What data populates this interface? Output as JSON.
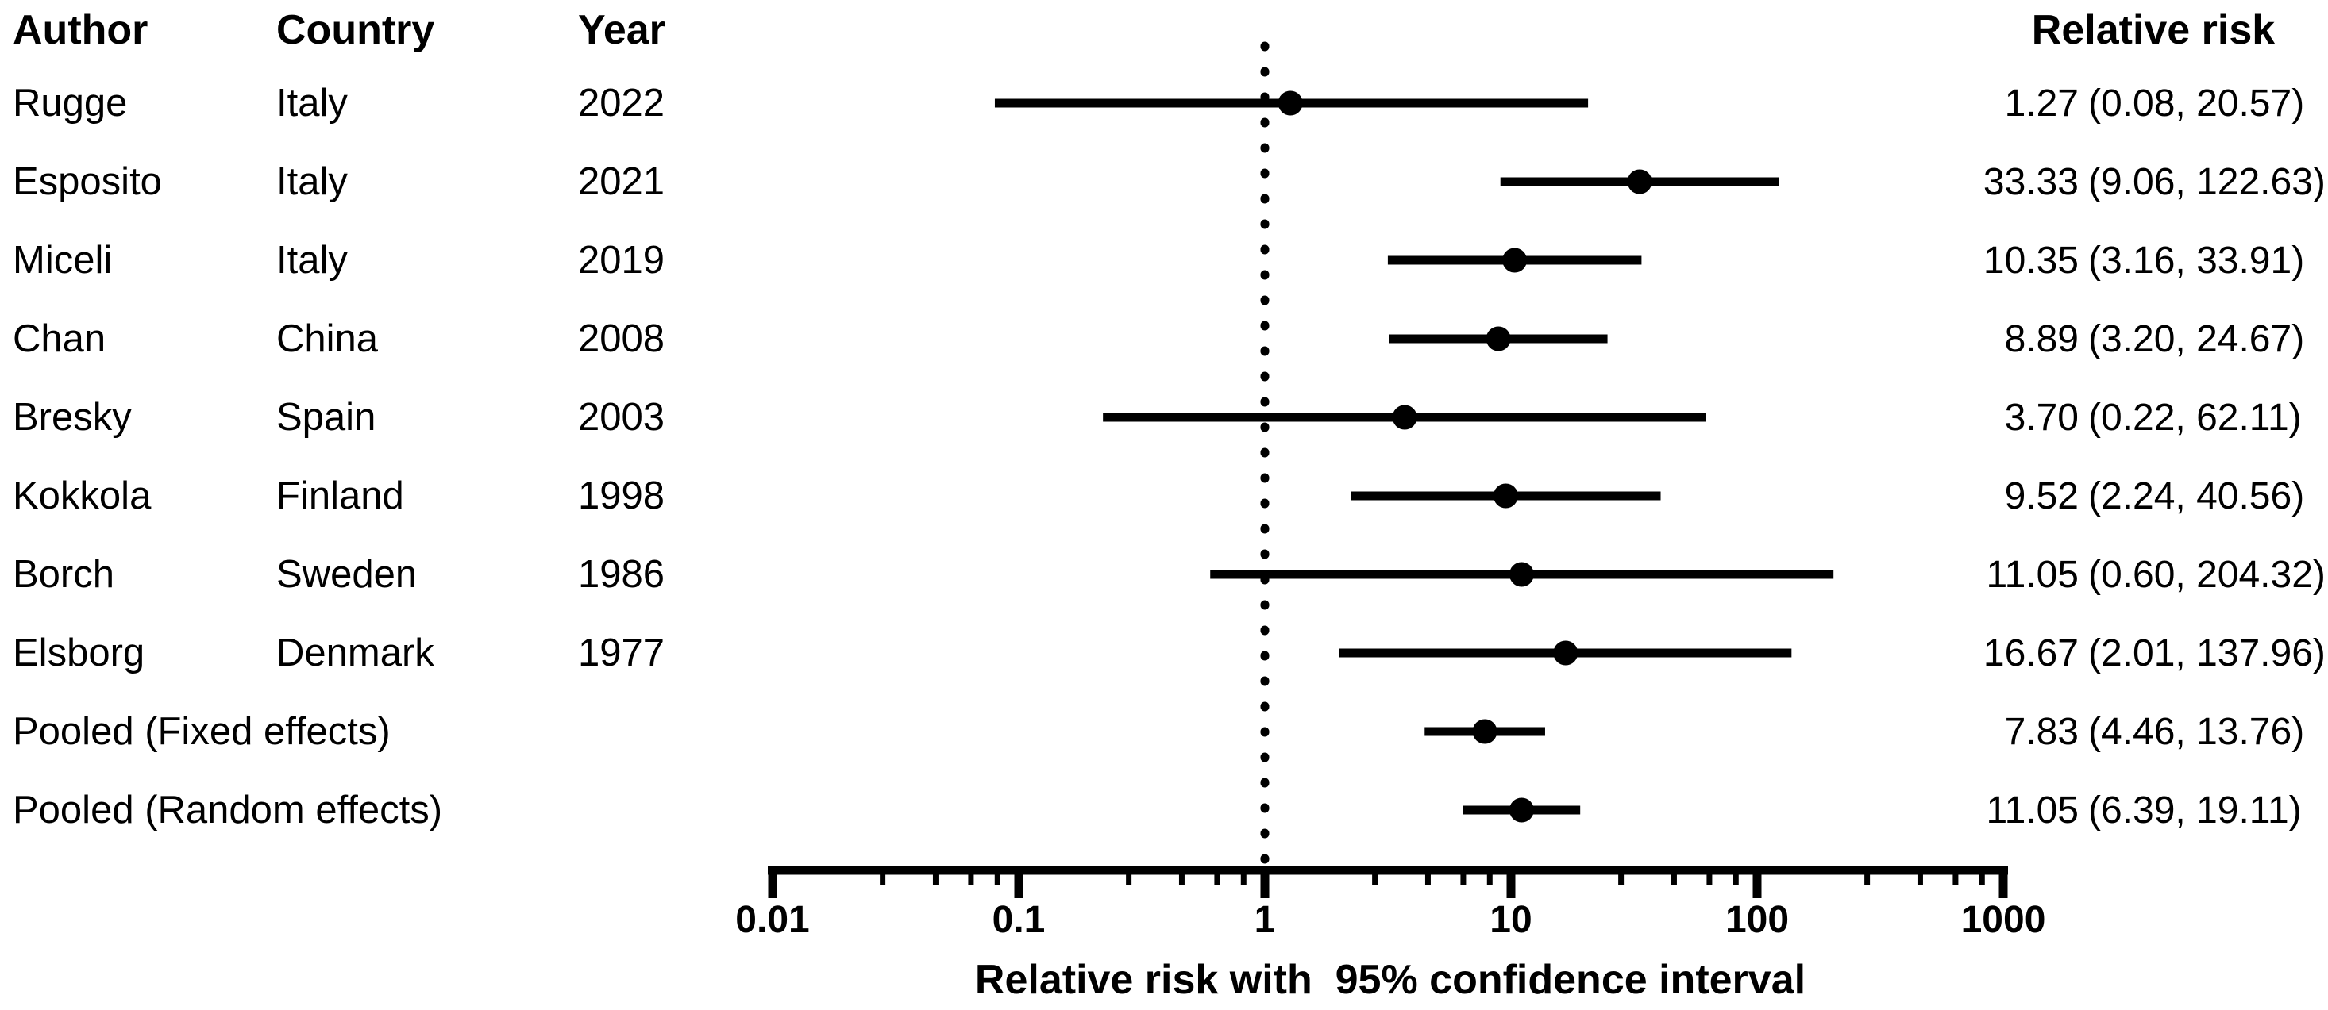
{
  "chart_data": {
    "type": "scatter",
    "subtype": "forest-plot",
    "columns": [
      "Author",
      "Country",
      "Year"
    ],
    "value_column_header": "Relative risk",
    "xlabel": "Relative risk with  95% confidence interval",
    "x_axis": {
      "scale": "log10",
      "min": 0.01,
      "max": 1000,
      "major_ticks": [
        0.01,
        0.1,
        1,
        10,
        100,
        1000
      ],
      "tick_labels": [
        "0.01",
        "0.1",
        "1",
        "10",
        "100",
        "1000"
      ],
      "minor_ticks_per_decade": [
        2.8,
        4.6,
        6.4,
        8.2
      ],
      "minor_tick_decades": [
        0.01,
        0.1,
        1,
        10,
        100
      ],
      "reference_line_value": 1,
      "grid": false
    },
    "rows": [
      {
        "author": "Rugge",
        "country": "Italy",
        "year": "2022",
        "estimate": 1.27,
        "ci_lower": 0.08,
        "ci_upper": 20.57,
        "estimate_label": "1.27",
        "ci_label": "(0.08, 20.57)"
      },
      {
        "author": "Esposito",
        "country": "Italy",
        "year": "2021",
        "estimate": 33.33,
        "ci_lower": 9.06,
        "ci_upper": 122.63,
        "estimate_label": "33.33",
        "ci_label": "(9.06, 122.63)"
      },
      {
        "author": "Miceli",
        "country": "Italy",
        "year": "2019",
        "estimate": 10.35,
        "ci_lower": 3.16,
        "ci_upper": 33.91,
        "estimate_label": "10.35",
        "ci_label": "(3.16, 33.91)"
      },
      {
        "author": "Chan",
        "country": "China",
        "year": "2008",
        "estimate": 8.89,
        "ci_lower": 3.2,
        "ci_upper": 24.67,
        "estimate_label": "8.89",
        "ci_label": "(3.20, 24.67)"
      },
      {
        "author": "Bresky",
        "country": "Spain",
        "year": "2003",
        "estimate": 3.7,
        "ci_lower": 0.22,
        "ci_upper": 62.11,
        "estimate_label": "3.70",
        "ci_label": "(0.22, 62.11)"
      },
      {
        "author": "Kokkola",
        "country": "Finland",
        "year": "1998",
        "estimate": 9.52,
        "ci_lower": 2.24,
        "ci_upper": 40.56,
        "estimate_label": "9.52",
        "ci_label": "(2.24, 40.56)"
      },
      {
        "author": "Borch",
        "country": "Sweden",
        "year": "1986",
        "estimate": 11.05,
        "ci_lower": 0.6,
        "ci_upper": 204.32,
        "estimate_label": "11.05",
        "ci_label": "(0.60, 204.32)"
      },
      {
        "author": "Elsborg",
        "country": "Denmark",
        "year": "1977",
        "estimate": 16.67,
        "ci_lower": 2.01,
        "ci_upper": 137.96,
        "estimate_label": "16.67",
        "ci_label": "(2.01, 137.96)"
      },
      {
        "author": "Pooled (Fixed effects)",
        "country": "",
        "year": "",
        "estimate": 7.83,
        "ci_lower": 4.46,
        "ci_upper": 13.76,
        "estimate_label": "7.83",
        "ci_label": "(4.46, 13.76)"
      },
      {
        "author": "Pooled (Random effects)",
        "country": "",
        "year": "",
        "estimate": 11.05,
        "ci_lower": 6.39,
        "ci_upper": 19.11,
        "estimate_label": "11.05",
        "ci_label": "(6.39, 19.11)"
      }
    ],
    "colors": {
      "foreground": "#000000",
      "background": "#ffffff"
    }
  }
}
